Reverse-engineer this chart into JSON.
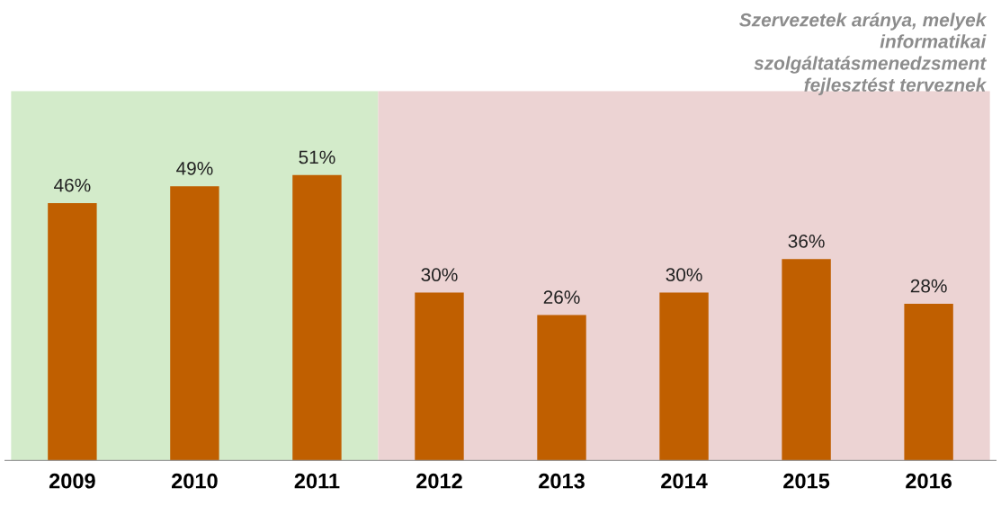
{
  "chart_data": {
    "type": "bar",
    "title": "Szervezetek aránya, melyek\ninformatikai\nszolgáltatásmenedzsment\nfejlesztést terveznek",
    "categories": [
      "2009",
      "2010",
      "2011",
      "2012",
      "2013",
      "2014",
      "2015",
      "2016"
    ],
    "values": [
      46,
      49,
      51,
      30,
      26,
      30,
      36,
      28
    ],
    "value_labels": [
      "46%",
      "49%",
      "51%",
      "30%",
      "26%",
      "30%",
      "36%",
      "28%"
    ],
    "color": "#c05f00",
    "ylim": [
      0,
      66
    ],
    "bands": [
      {
        "axis": "x",
        "from": "2009",
        "to": "2011",
        "color": "#d3ebca"
      },
      {
        "axis": "x",
        "from": "2012",
        "to": "2016",
        "color": "#ecd3d3"
      }
    ],
    "grid": false,
    "legend": false
  }
}
